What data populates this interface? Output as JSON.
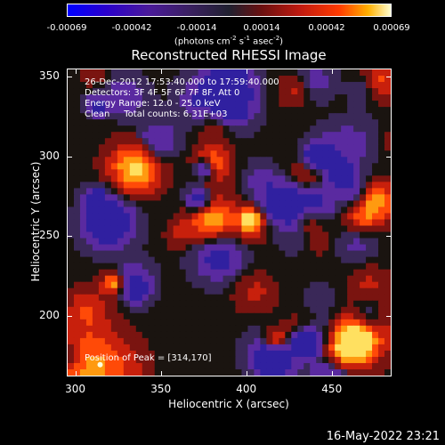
{
  "colorbar": {
    "ticks": [
      "-0.00069",
      "-0.00042",
      "-0.00014",
      "0.00014",
      "0.00042",
      "0.00069"
    ],
    "units_prefix": "(photons cm",
    "units_sup1": "-2",
    "units_mid": " s",
    "units_sup2": "-1",
    "units_mid2": " asec",
    "units_sup3": "-2",
    "units_suffix": ")"
  },
  "chart_data": {
    "type": "heatmap",
    "title": "Reconstructed RHESSI Image",
    "xlabel": "Heliocentric X (arcsec)",
    "ylabel": "Heliocentric Y (arcsec)",
    "xlim": [
      295,
      485
    ],
    "ylim": [
      162,
      355
    ],
    "x_ticks": [
      "300",
      "350",
      "400",
      "450"
    ],
    "y_ticks": [
      "350",
      "300",
      "250",
      "200"
    ],
    "annotations": {
      "time": "26-Dec-2012 17:53:40.000 to 17:59:40.000",
      "detectors": "Detectors: 3F 4F 5F 6F 7F 8F, Att 0",
      "energy": "Energy Range: 12.0 - 25.0 keV",
      "clean": "Clean     Total counts: 6.31E+03",
      "peak": "Position of Peak = [314,170]"
    },
    "peak": [
      314,
      170
    ]
  },
  "footer_date": "16-May-2022 23:21"
}
